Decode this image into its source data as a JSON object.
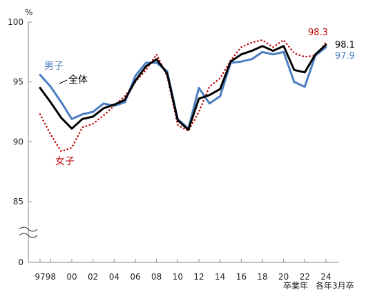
{
  "chart_data": {
    "type": "line",
    "unit_label": "%",
    "x_tick_labels": [
      "97",
      "98",
      "00",
      "02",
      "04",
      "06",
      "08",
      "10",
      "12",
      "14",
      "16",
      "18",
      "20",
      "22",
      "24"
    ],
    "x_tick_values": [
      1997,
      1998,
      2000,
      2002,
      2004,
      2006,
      2008,
      2010,
      2012,
      2014,
      2016,
      2018,
      2020,
      2022,
      2024
    ],
    "xlabel_left": "卒業年",
    "xlabel_right": "各年3月卒",
    "y_tick_labels": [
      "100",
      "95",
      "90",
      "85",
      "0"
    ],
    "ylim": [
      85,
      100
    ],
    "y_axis_break": true,
    "x": [
      1997,
      1998,
      1999,
      2000,
      2001,
      2002,
      2003,
      2004,
      2005,
      2006,
      2007,
      2008,
      2009,
      2010,
      2011,
      2012,
      2013,
      2014,
      2015,
      2016,
      2017,
      2018,
      2019,
      2020,
      2021,
      2022,
      2023,
      2024
    ],
    "series": [
      {
        "name": "全体",
        "color": "#000000",
        "style": "solid",
        "values": [
          94.5,
          93.3,
          92.0,
          91.1,
          91.9,
          92.1,
          92.8,
          93.1,
          93.5,
          95.1,
          96.3,
          96.9,
          95.7,
          91.8,
          91.0,
          93.6,
          93.9,
          94.4,
          96.7,
          97.3,
          97.6,
          98.0,
          97.6,
          98.0,
          96.0,
          95.8,
          97.3,
          98.1
        ],
        "end_label": "98.1"
      },
      {
        "name": "男子",
        "color": "#4a7ec2",
        "style": "solid",
        "values": [
          95.6,
          94.6,
          93.3,
          91.9,
          92.3,
          92.5,
          93.2,
          93.0,
          93.3,
          95.5,
          96.6,
          96.6,
          95.9,
          91.9,
          91.1,
          94.5,
          93.2,
          93.8,
          96.6,
          96.7,
          96.9,
          97.5,
          97.3,
          97.5,
          95.0,
          94.6,
          97.2,
          97.9
        ],
        "end_label": "97.9"
      },
      {
        "name": "女子",
        "color": "#c00000",
        "style": "dotted",
        "values": [
          92.3,
          90.6,
          89.2,
          89.5,
          91.2,
          91.5,
          92.2,
          93.0,
          93.8,
          95.0,
          96.0,
          97.3,
          95.5,
          91.4,
          90.9,
          92.5,
          94.6,
          95.3,
          96.8,
          97.9,
          98.3,
          98.5,
          97.9,
          98.5,
          97.4,
          97.1,
          97.2,
          98.3
        ],
        "end_label": "98.3"
      }
    ]
  }
}
